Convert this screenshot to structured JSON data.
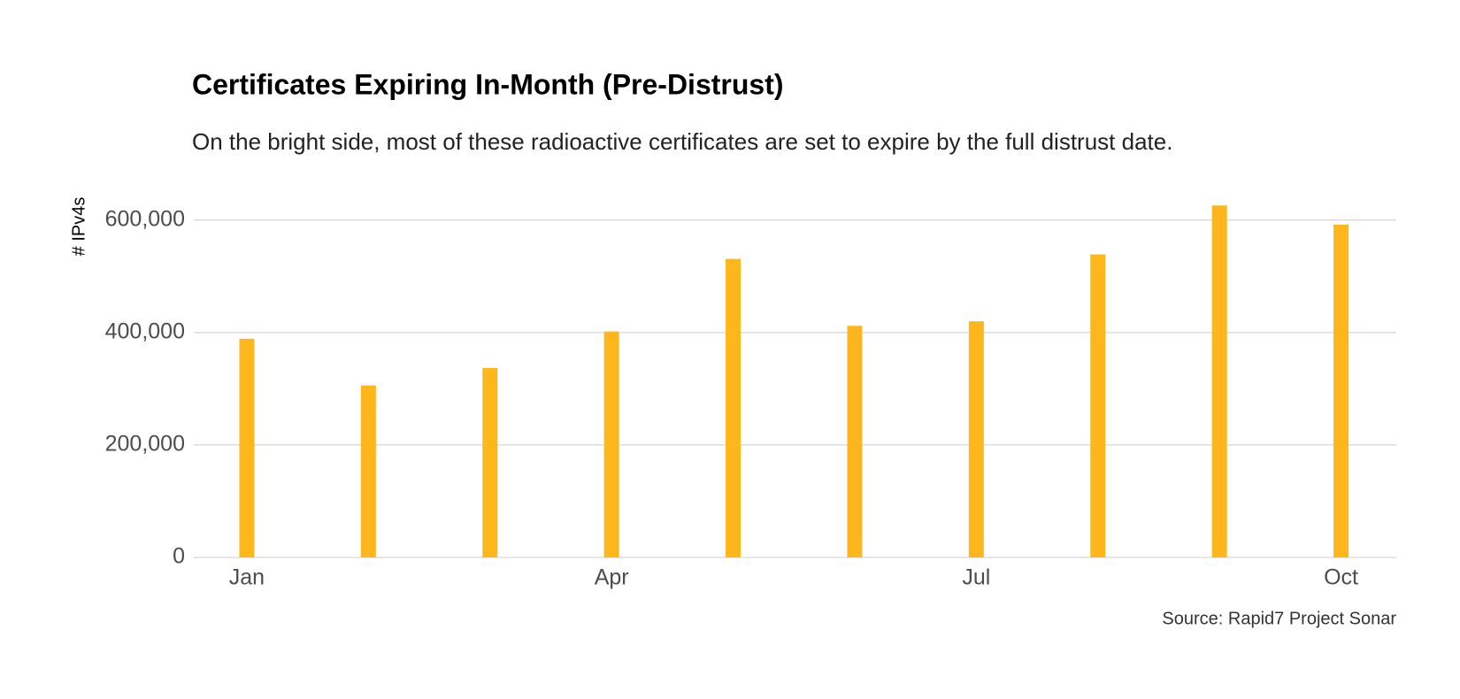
{
  "chart_data": {
    "type": "bar",
    "title": "Certificates Expiring In-Month (Pre-Distrust)",
    "subtitle": "On the bright side, most of these radioactive certificates are set to expire by the full distrust date.",
    "y_label": "# IPv4s",
    "source": "Source: Rapid7 Project Sonar",
    "categories": [
      "Jan",
      null,
      null,
      "Apr",
      null,
      null,
      "Jul",
      null,
      null,
      "Oct"
    ],
    "values": [
      389000,
      306000,
      337000,
      402000,
      531000,
      412000,
      420000,
      539000,
      626000,
      592000
    ],
    "color": "#fdb71c",
    "ylim": [
      0,
      650000
    ],
    "yticks": [
      0,
      {
        "value": 200000,
        "label": "200,000"
      },
      {
        "value": 400000,
        "label": "400,000"
      },
      {
        "value": 600000,
        "label": "600,000"
      }
    ],
    "grid": true
  }
}
